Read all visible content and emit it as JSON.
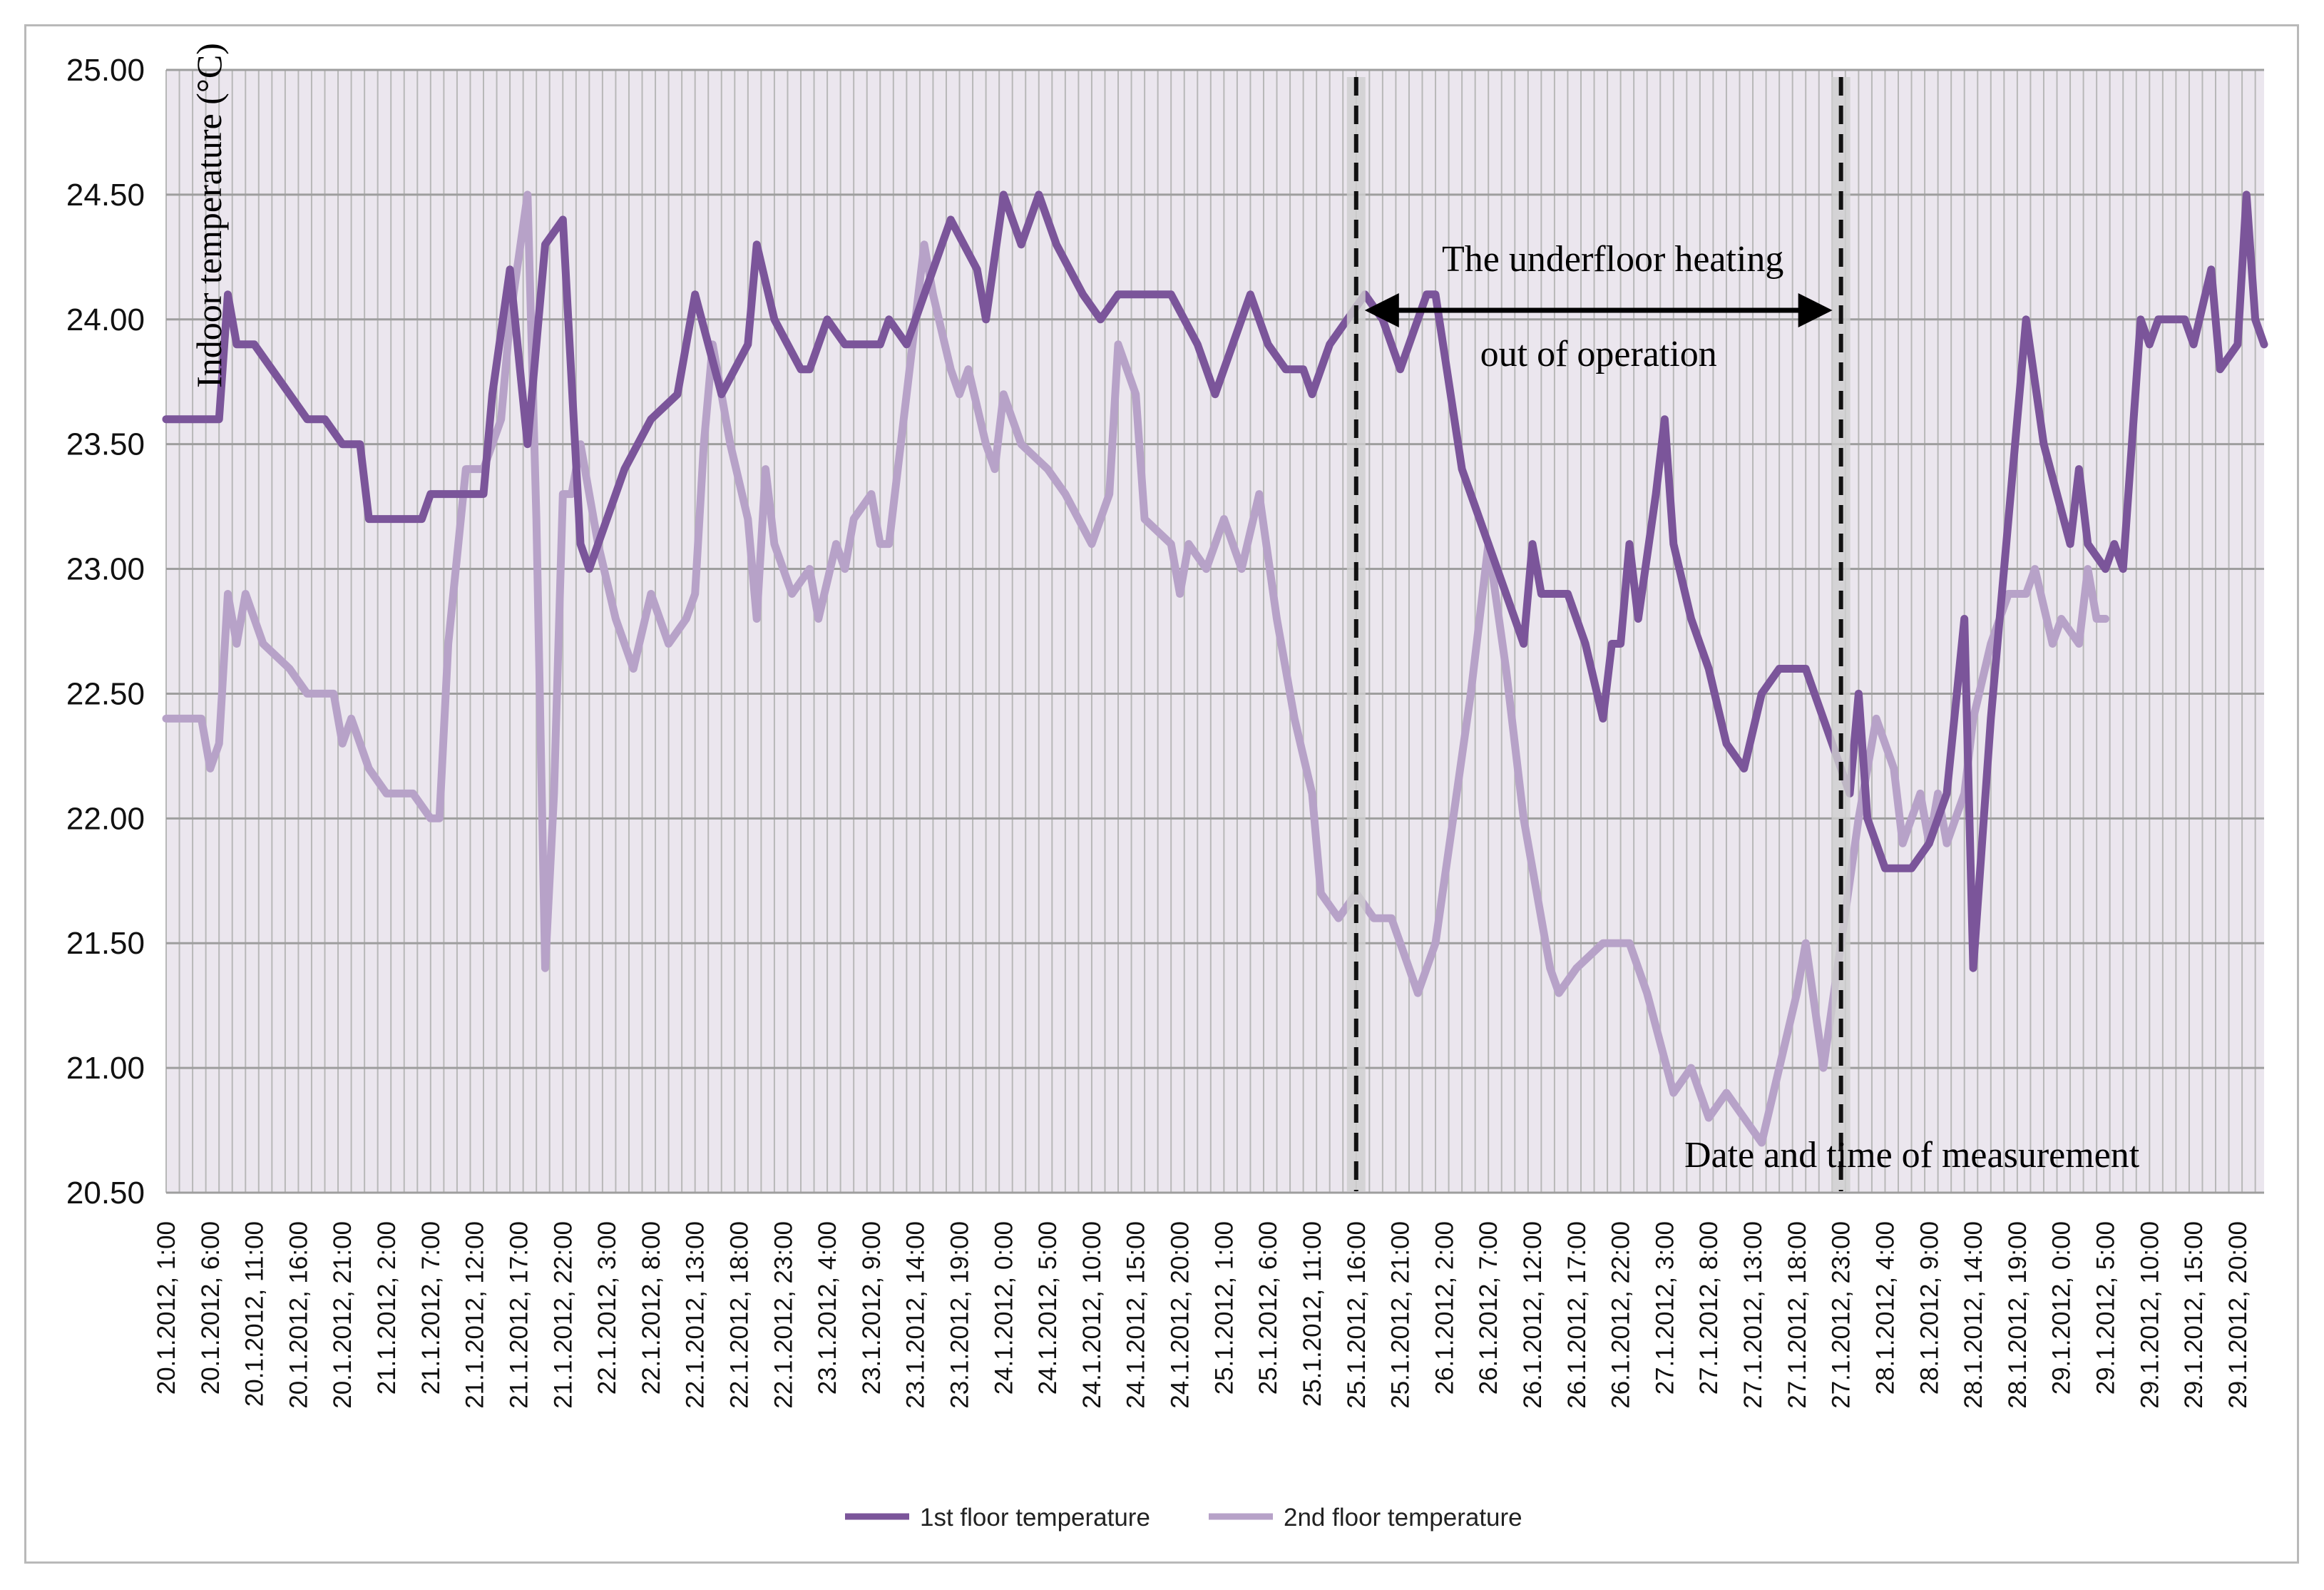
{
  "chart_data": {
    "type": "line",
    "ylabel": "Indoor temperature (°C)",
    "xlabel": "Date and time of measurement",
    "ylim": [
      20.5,
      25.0
    ],
    "yticks": [
      "20.50",
      "21.00",
      "21.50",
      "22.00",
      "22.50",
      "23.00",
      "23.50",
      "24.00",
      "24.50",
      "25.00"
    ],
    "grid": true,
    "legend_position": "bottom-center",
    "categories": [
      "20.1.2012, 1:00",
      "20.1.2012, 6:00",
      "20.1.2012, 11:00",
      "20.1.2012, 16:00",
      "20.1.2012, 21:00",
      "21.1.2012, 2:00",
      "21.1.2012, 7:00",
      "21.1.2012, 12:00",
      "21.1.2012, 17:00",
      "21.1.2012, 22:00",
      "22.1.2012, 3:00",
      "22.1.2012, 8:00",
      "22.1.2012, 13:00",
      "22.1.2012, 18:00",
      "22.1.2012, 23:00",
      "23.1.2012, 4:00",
      "23.1.2012, 9:00",
      "23.1.2012, 14:00",
      "23.1.2012, 19:00",
      "24.1.2012, 0:00",
      "24.1.2012, 5:00",
      "24.1.2012, 10:00",
      "24.1.2012, 15:00",
      "24.1.2012, 20:00",
      "25.1.2012, 1:00",
      "25.1.2012, 6:00",
      "25.1.2012, 11:00",
      "25.1.2012, 16:00",
      "25.1.2012, 21:00",
      "26.1.2012, 2:00",
      "26.1.2012, 7:00",
      "26.1.2012, 12:00",
      "26.1.2012, 17:00",
      "26.1.2012, 22:00",
      "27.1.2012, 3:00",
      "27.1.2012, 8:00",
      "27.1.2012, 13:00",
      "27.1.2012, 18:00",
      "27.1.2012, 23:00",
      "28.1.2012, 4:00",
      "28.1.2012, 9:00",
      "28.1.2012, 14:00",
      "28.1.2012, 19:00",
      "29.1.2012, 0:00",
      "29.1.2012, 5:00",
      "29.1.2012, 10:00",
      "29.1.2012, 15:00",
      "29.1.2012, 20:00"
    ],
    "x_range_hours": [
      0,
      238
    ],
    "series": [
      {
        "name": "1st floor temperature",
        "color": "#7b559a",
        "points": [
          [
            0,
            23.6
          ],
          [
            6,
            23.6
          ],
          [
            7,
            24.1
          ],
          [
            8,
            23.9
          ],
          [
            10,
            23.9
          ],
          [
            12,
            23.8
          ],
          [
            14,
            23.7
          ],
          [
            16,
            23.6
          ],
          [
            18,
            23.6
          ],
          [
            20,
            23.5
          ],
          [
            22,
            23.5
          ],
          [
            23,
            23.2
          ],
          [
            29,
            23.2
          ],
          [
            30,
            23.3
          ],
          [
            36,
            23.3
          ],
          [
            37,
            23.7
          ],
          [
            39,
            24.2
          ],
          [
            41,
            23.5
          ],
          [
            43,
            24.3
          ],
          [
            45,
            24.4
          ],
          [
            47,
            23.1
          ],
          [
            48,
            23.0
          ],
          [
            50,
            23.2
          ],
          [
            52,
            23.4
          ],
          [
            55,
            23.6
          ],
          [
            58,
            23.7
          ],
          [
            60,
            24.1
          ],
          [
            63,
            23.7
          ],
          [
            66,
            23.9
          ],
          [
            67,
            24.3
          ],
          [
            69,
            24.0
          ],
          [
            72,
            23.8
          ],
          [
            73,
            23.8
          ],
          [
            75,
            24.0
          ],
          [
            77,
            23.9
          ],
          [
            81,
            23.9
          ],
          [
            82,
            24.0
          ],
          [
            84,
            23.9
          ],
          [
            86,
            24.1
          ],
          [
            89,
            24.4
          ],
          [
            92,
            24.2
          ],
          [
            93,
            24.0
          ],
          [
            95,
            24.5
          ],
          [
            97,
            24.3
          ],
          [
            99,
            24.5
          ],
          [
            101,
            24.3
          ],
          [
            104,
            24.1
          ],
          [
            106,
            24.0
          ],
          [
            108,
            24.1
          ],
          [
            114,
            24.1
          ],
          [
            117,
            23.9
          ],
          [
            119,
            23.7
          ],
          [
            121,
            23.9
          ],
          [
            123,
            24.1
          ],
          [
            125,
            23.9
          ],
          [
            127,
            23.8
          ],
          [
            129,
            23.8
          ],
          [
            130,
            23.7
          ],
          [
            132,
            23.9
          ],
          [
            134,
            24.0
          ],
          [
            136,
            24.1
          ],
          [
            138,
            24.0
          ],
          [
            140,
            23.8
          ],
          [
            143,
            24.1
          ],
          [
            144,
            24.1
          ],
          [
            147,
            23.4
          ],
          [
            150,
            23.1
          ],
          [
            153,
            22.8
          ],
          [
            154,
            22.7
          ],
          [
            155,
            23.1
          ],
          [
            156,
            22.9
          ],
          [
            159,
            22.9
          ],
          [
            161,
            22.7
          ],
          [
            163,
            22.4
          ],
          [
            164,
            22.7
          ],
          [
            165,
            22.7
          ],
          [
            166,
            23.1
          ],
          [
            167,
            22.8
          ],
          [
            169,
            23.3
          ],
          [
            170,
            23.6
          ],
          [
            171,
            23.1
          ],
          [
            173,
            22.8
          ],
          [
            175,
            22.6
          ],
          [
            177,
            22.3
          ],
          [
            179,
            22.2
          ],
          [
            181,
            22.5
          ],
          [
            183,
            22.6
          ],
          [
            186,
            22.6
          ],
          [
            189,
            22.3
          ],
          [
            191,
            22.1
          ],
          [
            192,
            22.5
          ],
          [
            193,
            22.0
          ],
          [
            195,
            21.8
          ],
          [
            198,
            21.8
          ],
          [
            200,
            21.9
          ],
          [
            202,
            22.1
          ],
          [
            204,
            22.8
          ],
          [
            205,
            21.4
          ],
          [
            207,
            22.4
          ],
          [
            210,
            23.6
          ],
          [
            211,
            24.0
          ],
          [
            213,
            23.5
          ],
          [
            216,
            23.1
          ],
          [
            217,
            23.4
          ],
          [
            218,
            23.1
          ],
          [
            220,
            23.0
          ],
          [
            221,
            23.1
          ],
          [
            222,
            23.0
          ],
          [
            224,
            24.0
          ],
          [
            225,
            23.9
          ],
          [
            226,
            24.0
          ],
          [
            229,
            24.0
          ],
          [
            230,
            23.9
          ],
          [
            232,
            24.2
          ],
          [
            233,
            23.8
          ],
          [
            235,
            23.9
          ],
          [
            236,
            24.5
          ],
          [
            237,
            24.0
          ],
          [
            238,
            23.9
          ]
        ]
      },
      {
        "name": "2nd floor temperature",
        "color": "#b7a2c8",
        "points": [
          [
            0,
            22.4
          ],
          [
            4,
            22.4
          ],
          [
            5,
            22.2
          ],
          [
            6,
            22.3
          ],
          [
            7,
            22.9
          ],
          [
            8,
            22.7
          ],
          [
            9,
            22.9
          ],
          [
            11,
            22.7
          ],
          [
            14,
            22.6
          ],
          [
            16,
            22.5
          ],
          [
            19,
            22.5
          ],
          [
            20,
            22.3
          ],
          [
            21,
            22.4
          ],
          [
            23,
            22.2
          ],
          [
            25,
            22.1
          ],
          [
            28,
            22.1
          ],
          [
            30,
            22.0
          ],
          [
            31,
            22.0
          ],
          [
            32,
            22.7
          ],
          [
            34,
            23.4
          ],
          [
            36,
            23.4
          ],
          [
            38,
            23.6
          ],
          [
            39,
            24.0
          ],
          [
            41,
            24.5
          ],
          [
            42,
            23.2
          ],
          [
            43,
            21.4
          ],
          [
            44,
            22.1
          ],
          [
            45,
            23.3
          ],
          [
            46,
            23.3
          ],
          [
            47,
            23.5
          ],
          [
            49,
            23.1
          ],
          [
            51,
            22.8
          ],
          [
            53,
            22.6
          ],
          [
            55,
            22.9
          ],
          [
            57,
            22.7
          ],
          [
            59,
            22.8
          ],
          [
            60,
            22.9
          ],
          [
            61,
            23.5
          ],
          [
            62,
            23.9
          ],
          [
            64,
            23.5
          ],
          [
            66,
            23.2
          ],
          [
            67,
            22.8
          ],
          [
            68,
            23.4
          ],
          [
            69,
            23.1
          ],
          [
            71,
            22.9
          ],
          [
            73,
            23.0
          ],
          [
            74,
            22.8
          ],
          [
            76,
            23.1
          ],
          [
            77,
            23.0
          ],
          [
            78,
            23.2
          ],
          [
            80,
            23.3
          ],
          [
            81,
            23.1
          ],
          [
            82,
            23.1
          ],
          [
            84,
            23.7
          ],
          [
            86,
            24.3
          ],
          [
            87,
            24.1
          ],
          [
            89,
            23.8
          ],
          [
            90,
            23.7
          ],
          [
            91,
            23.8
          ],
          [
            93,
            23.5
          ],
          [
            94,
            23.4
          ],
          [
            95,
            23.7
          ],
          [
            97,
            23.5
          ],
          [
            100,
            23.4
          ],
          [
            102,
            23.3
          ],
          [
            105,
            23.1
          ],
          [
            107,
            23.3
          ],
          [
            108,
            23.9
          ],
          [
            110,
            23.7
          ],
          [
            111,
            23.2
          ],
          [
            114,
            23.1
          ],
          [
            115,
            22.9
          ],
          [
            116,
            23.1
          ],
          [
            118,
            23.0
          ],
          [
            120,
            23.2
          ],
          [
            122,
            23.0
          ],
          [
            124,
            23.3
          ],
          [
            126,
            22.8
          ],
          [
            128,
            22.4
          ],
          [
            130,
            22.1
          ],
          [
            131,
            21.7
          ],
          [
            133,
            21.6
          ],
          [
            135,
            21.7
          ],
          [
            137,
            21.6
          ],
          [
            139,
            21.6
          ],
          [
            140,
            21.5
          ],
          [
            142,
            21.3
          ],
          [
            144,
            21.5
          ],
          [
            146,
            22.0
          ],
          [
            148,
            22.5
          ],
          [
            150,
            23.1
          ],
          [
            152,
            22.6
          ],
          [
            154,
            22.0
          ],
          [
            157,
            21.4
          ],
          [
            158,
            21.3
          ],
          [
            160,
            21.4
          ],
          [
            163,
            21.5
          ],
          [
            166,
            21.5
          ],
          [
            168,
            21.3
          ],
          [
            171,
            20.9
          ],
          [
            173,
            21.0
          ],
          [
            175,
            20.8
          ],
          [
            177,
            20.9
          ],
          [
            179,
            20.8
          ],
          [
            181,
            20.7
          ],
          [
            183,
            21.0
          ],
          [
            185,
            21.3
          ],
          [
            186,
            21.5
          ],
          [
            188,
            21.0
          ],
          [
            190,
            21.5
          ],
          [
            192,
            22.0
          ],
          [
            194,
            22.4
          ],
          [
            196,
            22.2
          ],
          [
            197,
            21.9
          ],
          [
            199,
            22.1
          ],
          [
            200,
            21.9
          ],
          [
            201,
            22.1
          ],
          [
            202,
            21.9
          ],
          [
            204,
            22.1
          ],
          [
            205,
            22.4
          ],
          [
            207,
            22.7
          ],
          [
            209,
            22.9
          ],
          [
            211,
            22.9
          ],
          [
            212,
            23.0
          ],
          [
            214,
            22.7
          ],
          [
            215,
            22.8
          ],
          [
            217,
            22.7
          ],
          [
            218,
            23.0
          ],
          [
            219,
            22.8
          ],
          [
            220,
            22.8
          ]
        ]
      }
    ],
    "annotations": {
      "period_label_1": "The underfloor heating",
      "period_label_2": "out of operation",
      "period_start": "25.1.2012, 16:00",
      "period_end": "27.1.2012, 23:00"
    }
  }
}
